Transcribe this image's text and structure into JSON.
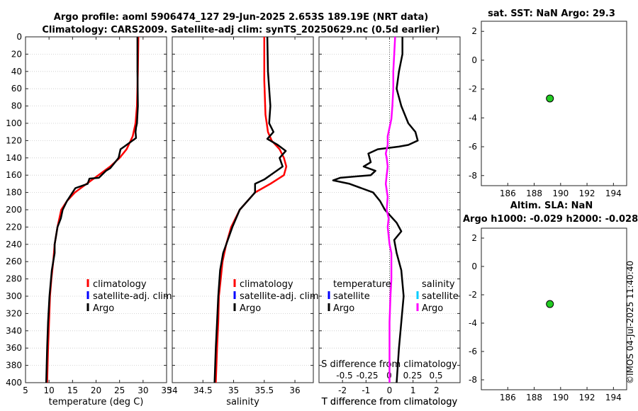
{
  "header": {
    "title_line1": "Argo profile: aoml 5906474_127 29-Jun-2025 2.653S 189.19E (NRT data)",
    "title_line2": "Climatology: CARS2009. Satellite-adj clim: synTS_20250629.nc (0.5d earlier)"
  },
  "watermark": "©IMOS 04-Jul-2025 11:40:40",
  "colors": {
    "climatology": "#ff0000",
    "satellite": "#0000ff",
    "argo": "#000000",
    "salinity_diff": "#ff00ff",
    "satellite_sal": "#00ccff",
    "point": "#22cc22"
  },
  "chart_data": [
    {
      "type": "line",
      "id": "temperature",
      "xlabel": "temperature (deg C)",
      "xlim": [
        5,
        35
      ],
      "ylim": [
        400,
        0
      ],
      "xticks": [
        5,
        10,
        15,
        20,
        25,
        30,
        35
      ],
      "yticks": [
        0,
        20,
        40,
        60,
        80,
        100,
        120,
        140,
        160,
        180,
        200,
        220,
        240,
        260,
        280,
        300,
        320,
        340,
        360,
        380,
        400
      ],
      "legend": [
        "climatology",
        "satellite-adj. clim",
        "Argo"
      ],
      "series": [
        {
          "name": "climatology",
          "color": "#ff0000",
          "x": [
            29.0,
            28.9,
            28.7,
            28.4,
            27.8,
            26.5,
            25.0,
            23.0,
            20.5,
            18.0,
            15.5,
            13.8,
            12.6,
            11.8,
            11.2,
            10.9,
            10.5,
            10.2,
            10.0,
            9.8,
            9.6
          ],
          "y": [
            0,
            40,
            80,
            100,
            115,
            130,
            140,
            150,
            160,
            170,
            180,
            190,
            200,
            220,
            240,
            260,
            280,
            300,
            330,
            360,
            400
          ]
        },
        {
          "name": "Argo",
          "color": "#000000",
          "x": [
            28.8,
            28.8,
            28.9,
            28.7,
            28.5,
            28.4,
            28.5,
            26.0,
            25.2,
            24.8,
            23.6,
            23.0,
            22.1,
            20.6,
            18.6,
            18.2,
            15.6,
            13.8,
            12.9,
            12.5,
            11.8,
            11.2,
            11.2,
            10.6,
            10.1,
            9.8,
            9.6,
            9.4
          ],
          "y": [
            0,
            40,
            80,
            100,
            105,
            110,
            117,
            127,
            130,
            140,
            148,
            152,
            155,
            163,
            164,
            170,
            175,
            190,
            200,
            210,
            220,
            240,
            250,
            270,
            300,
            330,
            360,
            400
          ]
        }
      ]
    },
    {
      "type": "line",
      "id": "salinity",
      "xlabel": "salinity",
      "xlim": [
        34,
        36.3
      ],
      "ylim": [
        400,
        0
      ],
      "xticks": [
        34,
        34.5,
        35,
        35.5,
        36
      ],
      "legend": [
        "climatology",
        "satellite-adj. clim",
        "Argo"
      ],
      "series": [
        {
          "name": "climatology",
          "color": "#ff0000",
          "x": [
            35.5,
            35.5,
            35.52,
            35.56,
            35.62,
            35.75,
            35.82,
            35.86,
            35.82,
            35.6,
            35.35,
            35.1,
            34.96,
            34.88,
            34.82,
            34.79,
            34.76,
            34.75,
            34.73,
            34.71
          ],
          "y": [
            0,
            50,
            90,
            110,
            120,
            130,
            140,
            150,
            160,
            170,
            180,
            200,
            220,
            240,
            260,
            280,
            300,
            330,
            360,
            400
          ]
        },
        {
          "name": "Argo",
          "color": "#000000",
          "x": [
            35.55,
            35.56,
            35.6,
            35.58,
            35.65,
            35.55,
            35.72,
            35.85,
            35.75,
            35.8,
            35.5,
            35.35,
            35.35,
            35.1,
            34.98,
            34.93,
            34.83,
            34.78,
            34.75,
            34.73,
            34.71,
            34.69
          ],
          "y": [
            0,
            40,
            80,
            100,
            110,
            118,
            125,
            132,
            140,
            150,
            165,
            170,
            180,
            200,
            220,
            230,
            250,
            270,
            300,
            330,
            360,
            400
          ]
        }
      ]
    },
    {
      "type": "line",
      "id": "difference",
      "xlabel": "T difference from climatology",
      "xlabel2": "S difference from climatology",
      "xlim": [
        -3,
        3
      ],
      "ylim": [
        400,
        0
      ],
      "xticks": [
        -2,
        -1,
        0,
        1,
        2
      ],
      "xticks2_labels": [
        "-0.5",
        "-0.25",
        "0",
        "0.25",
        "0.5"
      ],
      "legend_headers": [
        "temperature",
        "salinity"
      ],
      "legend_left": [
        "satellite",
        "Argo"
      ],
      "legend_right": [
        "satellite",
        "Argo"
      ],
      "series": [
        {
          "name": "T Argo",
          "color": "#000000",
          "x": [
            0.55,
            0.55,
            0.4,
            0.3,
            0.5,
            0.8,
            1.1,
            1.2,
            0.8,
            0.4,
            -0.5,
            -0.9,
            -0.8,
            -1.1,
            -0.6,
            -0.8,
            -2.1,
            -2.4,
            -1.7,
            -1.2,
            -0.7,
            -0.4,
            -0.2,
            0.3,
            0.5,
            0.2,
            0.3,
            0.5,
            0.6,
            0.5,
            0.4,
            0.3
          ],
          "y": [
            0,
            20,
            40,
            60,
            80,
            100,
            110,
            120,
            125,
            127,
            130,
            135,
            145,
            150,
            155,
            160,
            163,
            166,
            170,
            175,
            180,
            190,
            200,
            215,
            225,
            235,
            250,
            270,
            300,
            330,
            360,
            400
          ]
        },
        {
          "name": "S Argo",
          "color": "#ff00ff",
          "x": [
            0.06,
            0.05,
            0.04,
            0.04,
            0.03,
            0.02,
            0.0,
            -0.02,
            -0.02,
            -0.04,
            -0.03,
            -0.02,
            -0.03,
            -0.04,
            -0.02,
            -0.03,
            -0.01,
            -0.02,
            0.0,
            0.02,
            0.02,
            0.02,
            0.01,
            0.0,
            0.0,
            0.0
          ],
          "y": [
            0,
            20,
            40,
            60,
            80,
            95,
            105,
            115,
            125,
            135,
            140,
            150,
            160,
            170,
            185,
            200,
            210,
            220,
            240,
            250,
            260,
            280,
            300,
            330,
            360,
            400
          ]
        }
      ]
    },
    {
      "type": "scatter",
      "id": "sst_map",
      "title": "sat. SST: NaN Argo: 29.3",
      "xlim": [
        184,
        195
      ],
      "ylim": [
        -8.7,
        2.7
      ],
      "xticks": [
        186,
        188,
        190,
        192,
        194
      ],
      "yticks": [
        2,
        0,
        -2,
        -4,
        -6,
        -8
      ],
      "points": [
        {
          "x": 189.19,
          "y": -2.653
        }
      ]
    },
    {
      "type": "scatter",
      "id": "sla_map",
      "title": "Altim. SLA: NaN",
      "title2": "Argo h1000: -0.029 h2000: -0.028",
      "xlim": [
        184,
        195
      ],
      "ylim": [
        -8.7,
        2.7
      ],
      "xticks": [
        186,
        188,
        190,
        192,
        194
      ],
      "yticks": [
        2,
        0,
        -2,
        -4,
        -6,
        -8
      ],
      "points": [
        {
          "x": 189.19,
          "y": -2.653
        }
      ]
    }
  ]
}
